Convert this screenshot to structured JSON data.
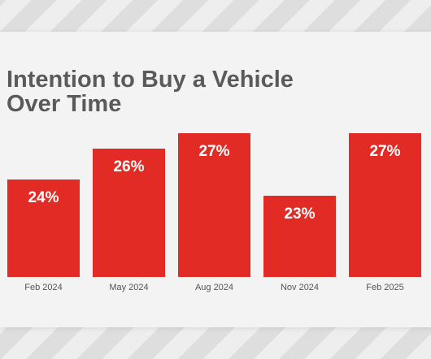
{
  "chart_data": {
    "type": "bar",
    "title": "Intention to Buy a Vehicle Over Time",
    "categories": [
      "Feb 2024",
      "May 2024",
      "Aug 2024",
      "Nov 2024",
      "Feb 2025"
    ],
    "values": [
      24,
      26,
      27,
      23,
      27
    ],
    "data_labels": [
      "24%",
      "26%",
      "27%",
      "23%",
      "27%"
    ],
    "bar_color": "#e32b26",
    "grid": false
  }
}
